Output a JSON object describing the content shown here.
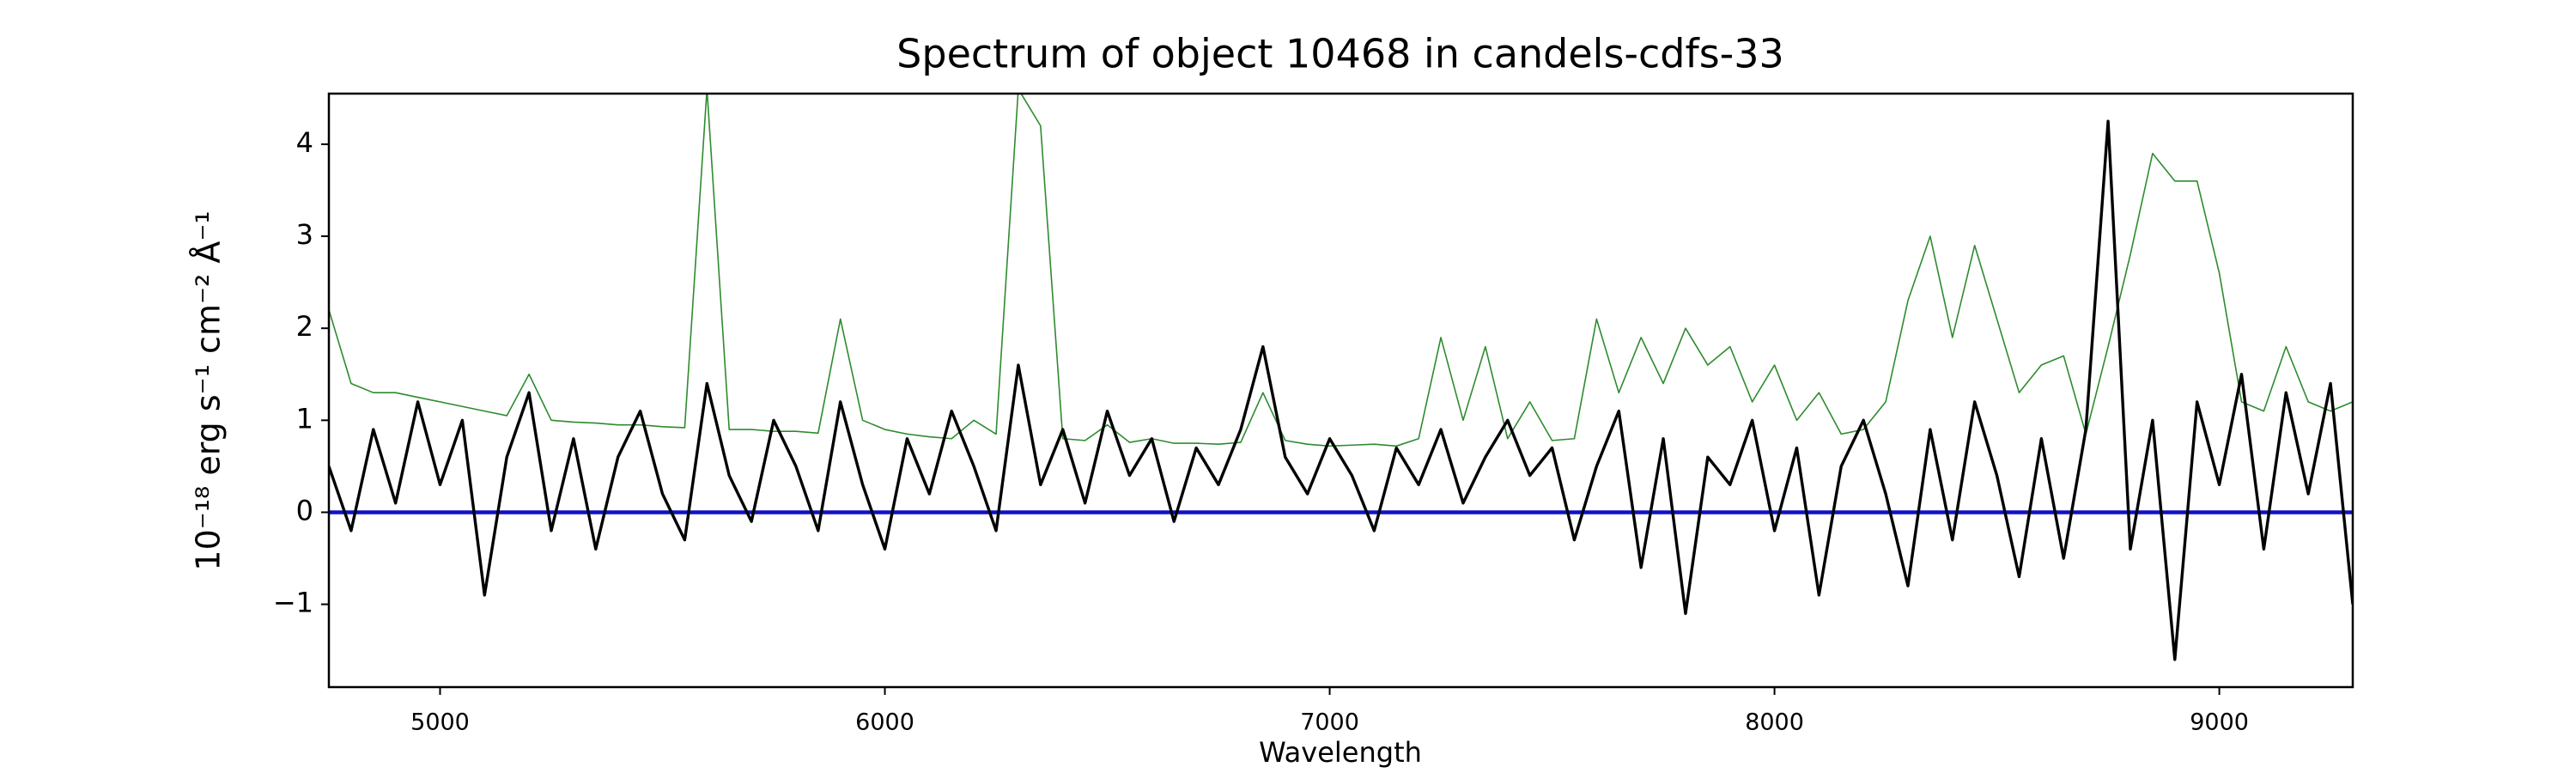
{
  "chart_data": {
    "type": "line",
    "title": "Spectrum of object 10468 in candels-cdfs-33",
    "xlabel": "Wavelength",
    "ylabel": "10⁻¹⁸ erg s⁻¹ cm⁻² Å⁻¹",
    "x": [
      4750,
      4800,
      4850,
      4900,
      4950,
      5000,
      5050,
      5100,
      5150,
      5200,
      5250,
      5300,
      5350,
      5400,
      5450,
      5500,
      5550,
      5600,
      5650,
      5700,
      5750,
      5800,
      5850,
      5900,
      5950,
      6000,
      6050,
      6100,
      6150,
      6200,
      6250,
      6300,
      6350,
      6400,
      6450,
      6500,
      6550,
      6600,
      6650,
      6700,
      6750,
      6800,
      6850,
      6900,
      6950,
      7000,
      7050,
      7100,
      7150,
      7200,
      7250,
      7300,
      7350,
      7400,
      7450,
      7500,
      7550,
      7600,
      7650,
      7700,
      7750,
      7800,
      7850,
      7900,
      7950,
      8000,
      8050,
      8100,
      8150,
      8200,
      8250,
      8300,
      8350,
      8400,
      8450,
      8500,
      8550,
      8600,
      8650,
      8700,
      8750,
      8800,
      8850,
      8900,
      8950,
      9000,
      9050,
      9100,
      9150,
      9200,
      9250,
      9300
    ],
    "series": [
      {
        "color": "#2e8b2e",
        "width": 1.6,
        "values": [
          2.2,
          1.4,
          1.3,
          1.3,
          1.25,
          1.2,
          1.15,
          1.1,
          1.05,
          1.5,
          1.0,
          0.98,
          0.97,
          0.95,
          0.95,
          0.93,
          0.92,
          4.6,
          0.9,
          0.9,
          0.88,
          0.88,
          0.86,
          2.1,
          1.0,
          0.9,
          0.85,
          0.82,
          0.8,
          1.0,
          0.85,
          4.6,
          4.2,
          0.8,
          0.78,
          0.95,
          0.76,
          0.8,
          0.75,
          0.75,
          0.74,
          0.76,
          1.3,
          0.78,
          0.74,
          0.72,
          0.73,
          0.74,
          0.72,
          0.8,
          1.9,
          1.0,
          1.8,
          0.8,
          1.2,
          0.78,
          0.8,
          2.1,
          1.3,
          1.9,
          1.4,
          2.0,
          1.6,
          1.8,
          1.2,
          1.6,
          1.0,
          1.3,
          0.85,
          0.9,
          1.2,
          2.3,
          3.0,
          1.9,
          2.9,
          2.1,
          1.3,
          1.6,
          1.7,
          0.85,
          1.8,
          2.8,
          3.9,
          3.6,
          3.6,
          2.6,
          1.2,
          1.1,
          1.8,
          1.2,
          1.1,
          1.2
        ]
      },
      {
        "color": "#000000",
        "width": 3.4,
        "values": [
          0.5,
          -0.2,
          0.9,
          0.1,
          1.2,
          0.3,
          1.0,
          -0.9,
          0.6,
          1.3,
          -0.2,
          0.8,
          -0.4,
          0.6,
          1.1,
          0.2,
          -0.3,
          1.4,
          0.4,
          -0.1,
          1.0,
          0.5,
          -0.2,
          1.2,
          0.3,
          -0.4,
          0.8,
          0.2,
          1.1,
          0.5,
          -0.2,
          1.6,
          0.3,
          0.9,
          0.1,
          1.1,
          0.4,
          0.8,
          -0.1,
          0.7,
          0.3,
          0.9,
          1.8,
          0.6,
          0.2,
          0.8,
          0.4,
          -0.2,
          0.7,
          0.3,
          0.9,
          0.1,
          0.6,
          1.0,
          0.4,
          0.7,
          -0.3,
          0.5,
          1.1,
          -0.6,
          0.8,
          -1.1,
          0.6,
          0.3,
          1.0,
          -0.2,
          0.7,
          -0.9,
          0.5,
          1.0,
          0.2,
          -0.8,
          0.9,
          -0.3,
          1.2,
          0.4,
          -0.7,
          0.8,
          -0.5,
          0.9,
          4.25,
          -0.4,
          1.0,
          -1.6,
          1.2,
          0.3,
          1.5,
          -0.4,
          1.3,
          0.2,
          1.4,
          -1.0
        ]
      }
    ],
    "reference_lines": [
      {
        "value": 0,
        "color": "#1010c8",
        "width": 4.5
      }
    ],
    "xlim": [
      4750,
      9300
    ],
    "xticks": [
      5000,
      6000,
      7000,
      8000,
      9000
    ],
    "ylim": [
      -1.9,
      4.55
    ],
    "yticks": [
      {
        "value": -1,
        "label": "−1"
      },
      0,
      1,
      2,
      3,
      4
    ],
    "grid": false
  }
}
